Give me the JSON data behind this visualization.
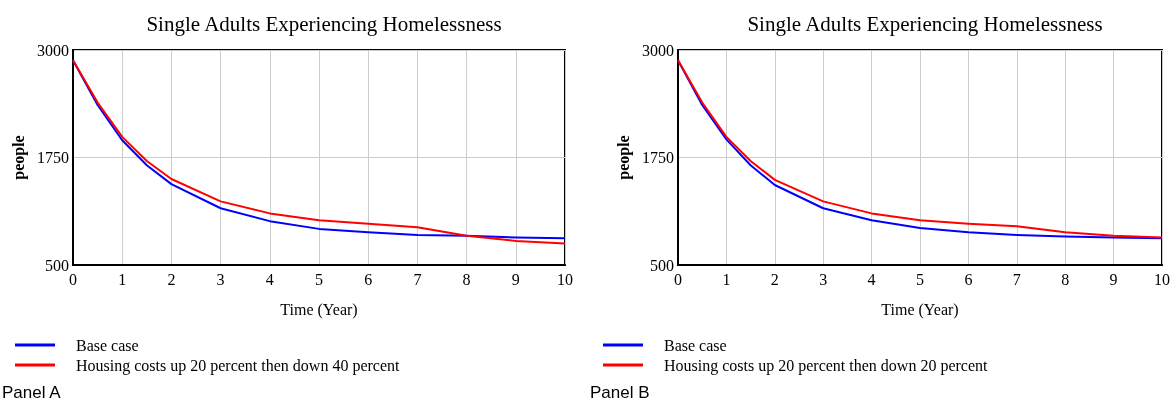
{
  "chart_data": [
    {
      "type": "line",
      "title": "Single Adults Experiencing Homelessness",
      "xlabel": "Time (Year)",
      "ylabel": "people",
      "x": [
        0,
        0.5,
        1,
        1.5,
        2,
        3,
        4,
        5,
        6,
        7,
        8,
        9,
        10
      ],
      "series": [
        {
          "name": "Base case",
          "color": "#0000ff",
          "values": [
            2880,
            2360,
            1950,
            1660,
            1440,
            1160,
            1010,
            920,
            880,
            850,
            840,
            820,
            810
          ]
        },
        {
          "name": "Housing costs up 20 percent then down 40 percent",
          "color": "#ff0000",
          "values": [
            2880,
            2390,
            1990,
            1710,
            1500,
            1240,
            1100,
            1020,
            980,
            940,
            840,
            780,
            750
          ]
        }
      ],
      "xlim": [
        0,
        10
      ],
      "xticks": [
        0,
        1,
        2,
        3,
        4,
        5,
        6,
        7,
        8,
        9,
        10
      ],
      "ylim": [
        500,
        3000
      ],
      "yticks": [
        500,
        1750,
        3000
      ],
      "grid": true,
      "legend": "bottom left",
      "marker": "none",
      "line_style": "solid",
      "annotations": [
        "Panel A"
      ]
    },
    {
      "type": "line",
      "title": "Single Adults Experiencing Homelessness",
      "xlabel": "Time (Year)",
      "ylabel": "people",
      "x": [
        0,
        0.5,
        1,
        1.5,
        2,
        3,
        4,
        5,
        6,
        7,
        8,
        9,
        10
      ],
      "series": [
        {
          "name": "Base case",
          "color": "#0000ff",
          "values": [
            2880,
            2360,
            1960,
            1660,
            1430,
            1160,
            1020,
            930,
            880,
            850,
            830,
            820,
            810
          ]
        },
        {
          "name": "Housing costs up 20 percent then down 20 percent",
          "color": "#ff0000",
          "values": [
            2880,
            2390,
            1990,
            1710,
            1490,
            1240,
            1100,
            1020,
            980,
            950,
            880,
            840,
            820
          ]
        }
      ],
      "xlim": [
        0,
        10
      ],
      "xticks": [
        0,
        1,
        2,
        3,
        4,
        5,
        6,
        7,
        8,
        9,
        10
      ],
      "ylim": [
        500,
        3000
      ],
      "yticks": [
        500,
        1750,
        3000
      ],
      "grid": true,
      "legend": "bottom left",
      "marker": "none",
      "line_style": "solid",
      "annotations": [
        "Panel B"
      ]
    }
  ]
}
